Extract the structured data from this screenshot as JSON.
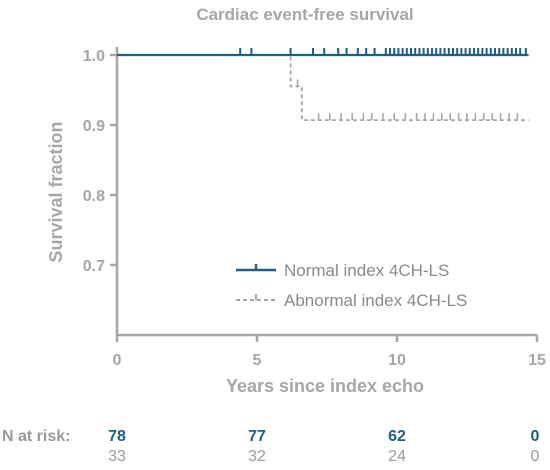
{
  "chart_data": {
    "type": "line",
    "title": "Cardiac event-free survival",
    "xlabel": "Years since index echo",
    "ylabel": "Survival fraction",
    "xlim": [
      0,
      15
    ],
    "ylim": [
      0.6,
      1.0
    ],
    "x_ticks": [
      0,
      5,
      10,
      15
    ],
    "y_ticks": [
      0.7,
      0.8,
      0.9,
      1.0
    ],
    "y_tick_labels": [
      "0.7",
      "0.8",
      "0.9",
      "1.0"
    ],
    "grid": false,
    "legend_position": "bottom-right",
    "colors": {
      "normal": "#1f5f82",
      "abnormal": "#a6a6a6",
      "axis": "#a6a6a6"
    },
    "series": [
      {
        "name": "Normal index 4CH-LS",
        "step_x": [
          0,
          14.7
        ],
        "step_y": [
          1.0,
          1.0
        ],
        "censored_x": [
          4.4,
          4.8,
          6.2,
          7.0,
          7.4,
          7.9,
          8.2,
          8.6,
          8.9,
          9.2,
          9.6,
          9.75,
          9.9,
          10.05,
          10.2,
          10.35,
          10.5,
          10.65,
          10.8,
          10.95,
          11.1,
          11.25,
          11.4,
          11.55,
          11.7,
          11.85,
          12.0,
          12.15,
          12.3,
          12.45,
          12.6,
          12.75,
          12.9,
          13.05,
          13.2,
          13.35,
          13.5,
          13.65,
          13.8,
          13.95,
          14.1,
          14.25,
          14.4,
          14.6
        ],
        "censored_y": 1.0
      },
      {
        "name": "Abnormal index 4CH-LS",
        "step_x": [
          0,
          6.2,
          6.2,
          6.6,
          6.6,
          14.7
        ],
        "step_y": [
          1.0,
          1.0,
          0.955,
          0.955,
          0.907,
          0.907
        ],
        "censored_x": [
          6.45,
          7.2,
          7.6,
          8.0,
          8.4,
          8.8,
          9.1,
          9.5,
          9.9,
          10.3,
          10.7,
          11.0,
          11.3,
          11.6,
          11.9,
          12.2,
          12.5,
          12.8,
          13.1,
          13.4,
          13.7,
          14.0,
          14.3
        ],
        "censored_y_after_first_step": [
          0.955
        ],
        "censored_y": 0.907
      }
    ],
    "risk_table": {
      "label": "N at risk:",
      "times": [
        0,
        5,
        10,
        15
      ],
      "normal": [
        "78",
        "77",
        "62",
        "0"
      ],
      "abnormal": [
        "33",
        "32",
        "24",
        "0"
      ]
    }
  }
}
